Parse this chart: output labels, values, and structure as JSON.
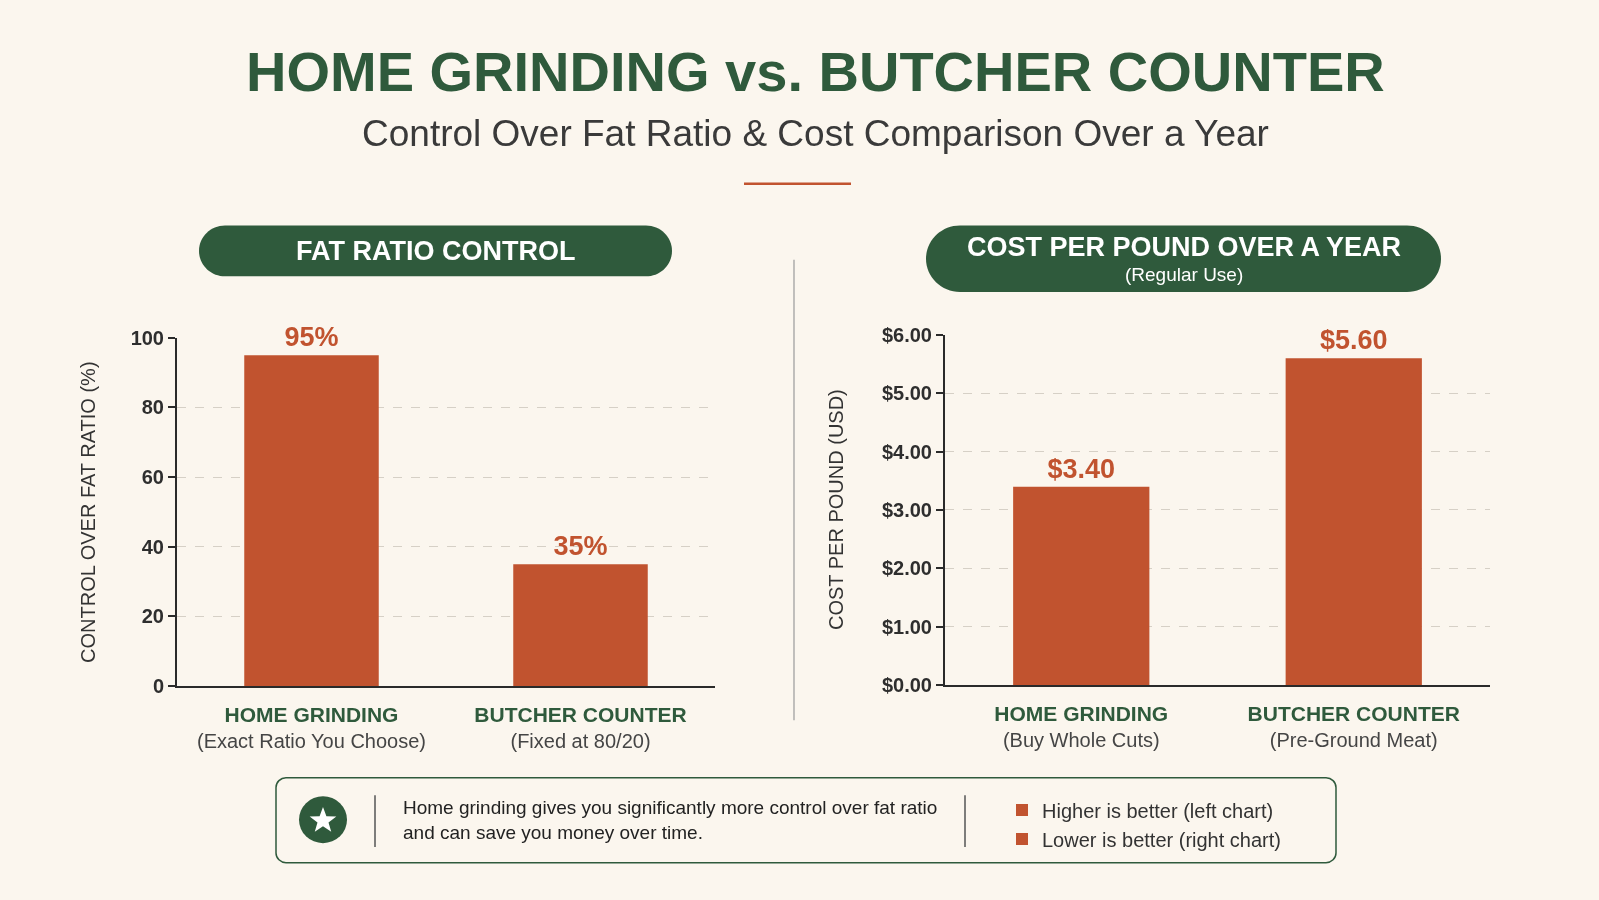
{
  "chart_data": [
    {
      "type": "other",
      "title": "HOME GRINDING vs. BUTCHER COUNTER",
      "subtitle": "Control Over Fat Ratio & Cost Comparison Over a Year"
    },
    {
      "type": "bar",
      "title": "FAT RATIO CONTROL",
      "ylabel": "CONTROL OVER FAT RATIO (%)",
      "categories": [
        "HOME GRINDING\n(Exact Ratio You Choose)",
        "BUTCHER COUNTER\n(Fixed at 80/20)"
      ],
      "series": [
        {
          "name": "Higher is better (left chart)",
          "color": "#c1532f",
          "values": [
            95,
            35
          ],
          "value_labels": [
            "95%",
            "35%"
          ]
        }
      ],
      "ylim": [
        0,
        100
      ],
      "yticks": [
        0,
        20,
        40,
        60,
        80,
        100
      ],
      "grid": "y",
      "legend": "bottom"
    },
    {
      "type": "bar",
      "title": "COST PER POUND OVER A YEAR",
      "subtitle": "(Regular Use)",
      "ylabel": "COST PER POUND (USD)",
      "categories": [
        "HOME GRINDING\n(Buy Whole Cuts)",
        "BUTCHER COUNTER\n(Pre-Ground Meat)"
      ],
      "series": [
        {
          "name": "Lower is better (right chart)",
          "color": "#c1532f",
          "values": [
            3.4,
            5.6
          ],
          "value_labels": [
            "$3.40",
            "$5.60"
          ]
        }
      ],
      "ylim": [
        0,
        6
      ],
      "yticks": [
        {
          "value": 0,
          "label": "$0.00"
        },
        {
          "value": 1,
          "label": "$1.00"
        },
        {
          "value": 2,
          "label": "$2.00"
        },
        {
          "value": 3,
          "label": "$3.00"
        },
        {
          "value": 4,
          "label": "$4.00"
        },
        {
          "value": 5,
          "label": "$5.00"
        },
        {
          "value": 6,
          "label": "$6.00"
        }
      ],
      "grid": "y",
      "legend": "bottom"
    },
    {
      "type": "other",
      "annotations": [
        "Home grinding gives you significantly more control over fat ratio\nand can save you money over time."
      ]
    }
  ]
}
